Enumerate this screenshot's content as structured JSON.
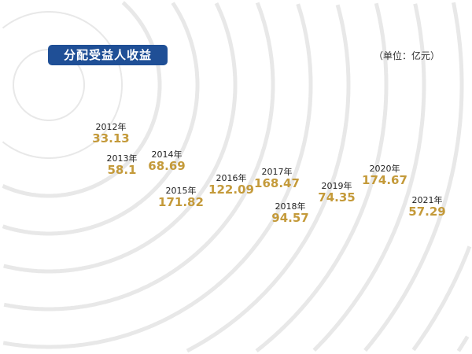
{
  "header": {
    "title": "分配受益人收益",
    "unit": "（单位：亿元）"
  },
  "colors": {
    "title_bg": "#1f4f96",
    "value": "#c49a3a",
    "rings": "#e8e8e8"
  },
  "chart_data": {
    "type": "scatter",
    "title": "分配受益人收益",
    "unit": "（单位：亿元）",
    "categories": [
      "2012年",
      "2013年",
      "2014年",
      "2015年",
      "2016年",
      "2017年",
      "2018年",
      "2019年",
      "2020年",
      "2021年"
    ],
    "values": [
      33.13,
      58.1,
      68.69,
      171.82,
      122.09,
      168.47,
      94.57,
      74.35,
      174.67,
      57.29
    ],
    "labels": [
      "33.13",
      "58.1",
      "68.69",
      "171.82",
      "122.09",
      "168.47",
      "94.57",
      "74.35",
      "174.67",
      "57.29"
    ]
  }
}
